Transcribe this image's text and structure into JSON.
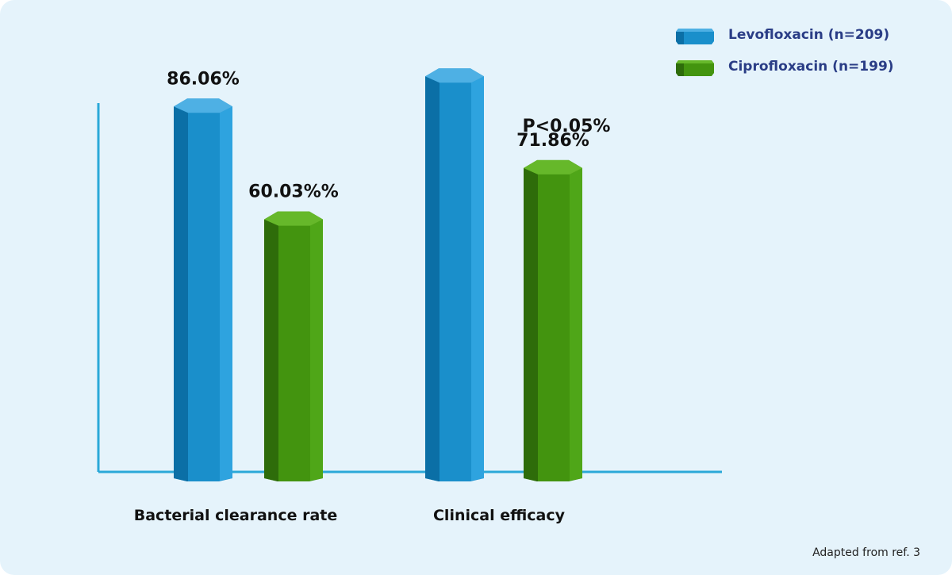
{
  "chart_data": {
    "type": "bar",
    "categories": [
      "Bacterial clearance rate",
      "Clinical efficacy"
    ],
    "series": [
      {
        "name": "Levofloxacin (n=209)",
        "values": [
          86.06,
          93
        ],
        "data_labels": [
          "86.06%",
          ""
        ],
        "color": "#1a8fcb"
      },
      {
        "name": "Ciprofloxacin (n=199)",
        "values": [
          60.03,
          71.86
        ],
        "data_labels": [
          "60.03%%",
          "71.86%"
        ],
        "color": "#43940f"
      }
    ],
    "annotations": [
      "P<0.05%"
    ],
    "ylim": [
      0,
      100
    ],
    "grid": false,
    "legend_position": "top-right"
  },
  "footer": {
    "source_note": "Adapted from ref. 3"
  }
}
